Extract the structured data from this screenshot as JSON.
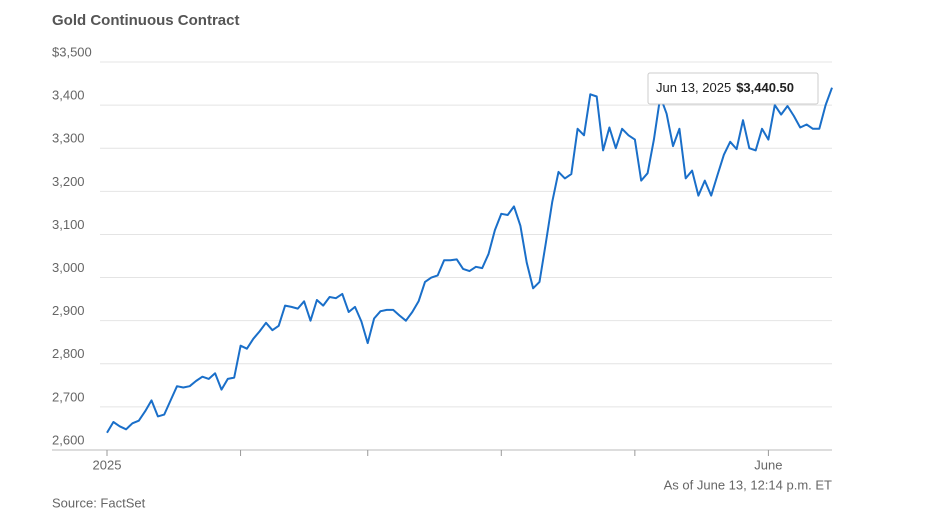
{
  "chart_data": {
    "type": "line",
    "title": "Gold Continuous Contract",
    "series": [
      {
        "name": "Gold Continuous Contract",
        "color": "#1a6fc9",
        "values": [
          2640,
          2665,
          2655,
          2648,
          2662,
          2668,
          2690,
          2715,
          2678,
          2682,
          2715,
          2748,
          2745,
          2748,
          2760,
          2770,
          2765,
          2778,
          2740,
          2765,
          2768,
          2842,
          2835,
          2858,
          2875,
          2895,
          2878,
          2888,
          2935,
          2932,
          2928,
          2945,
          2900,
          2948,
          2935,
          2955,
          2952,
          2962,
          2920,
          2932,
          2898,
          2848,
          2905,
          2922,
          2925,
          2925,
          2912,
          2900,
          2920,
          2945,
          2990,
          3000,
          3005,
          3040,
          3040,
          3042,
          3020,
          3015,
          3025,
          3022,
          3055,
          3110,
          3148,
          3145,
          3165,
          3120,
          3035,
          2975,
          2990,
          3080,
          3175,
          3245,
          3230,
          3240,
          3345,
          3330,
          3425,
          3420,
          3295,
          3348,
          3300,
          3345,
          3330,
          3320,
          3225,
          3242,
          3320,
          3420,
          3380,
          3305,
          3345,
          3230,
          3248,
          3190,
          3225,
          3190,
          3238,
          3285,
          3315,
          3298,
          3365,
          3300,
          3295,
          3345,
          3320,
          3400,
          3378,
          3398,
          3375,
          3348,
          3355,
          3345,
          3345,
          3400,
          3440.5
        ]
      }
    ],
    "xlim": [
      0,
      114
    ],
    "xticks": [
      {
        "value": 0,
        "label": "2025"
      },
      {
        "value": 104,
        "label": "June"
      }
    ],
    "xminor": [
      21,
      41,
      62,
      83
    ],
    "ylim": [
      2600,
      3500
    ],
    "yticks": [
      {
        "value": 2600,
        "label": "2,600"
      },
      {
        "value": 2700,
        "label": "2,700"
      },
      {
        "value": 2800,
        "label": "2,800"
      },
      {
        "value": 2900,
        "label": "2,900"
      },
      {
        "value": 3000,
        "label": "3,000"
      },
      {
        "value": 3100,
        "label": "3,100"
      },
      {
        "value": 3200,
        "label": "3,200"
      },
      {
        "value": 3300,
        "label": "3,300"
      },
      {
        "value": 3400,
        "label": "3,400"
      },
      {
        "value": 3500,
        "label": "$3,500"
      }
    ],
    "grid": true,
    "tooltip": {
      "date": "Jun 13, 2025",
      "value_label": "$3,440.50"
    },
    "note": "As of June 13, 12:14 p.m. ET",
    "source": "Source: FactSet"
  }
}
